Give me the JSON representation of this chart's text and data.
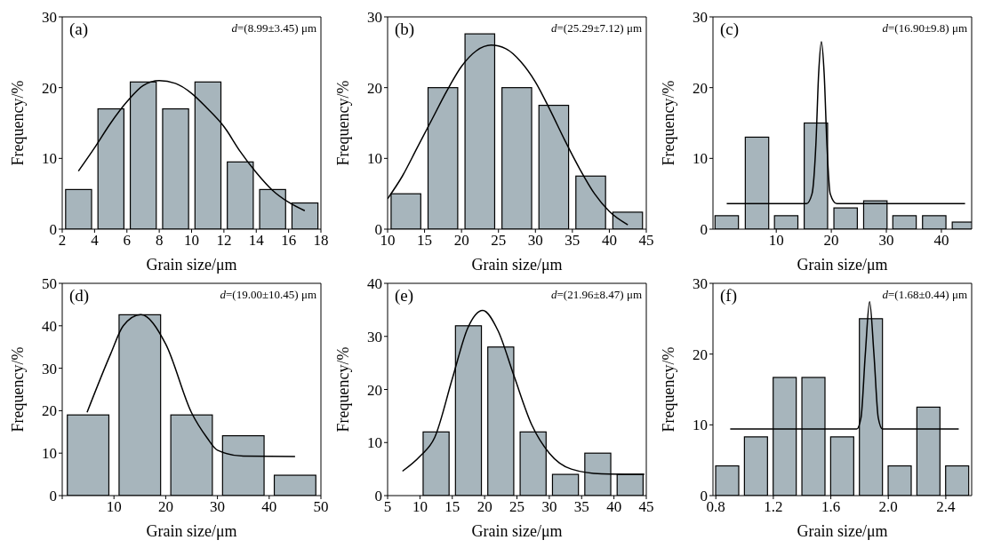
{
  "chart_data": [
    {
      "type": "bar",
      "title": "(a)",
      "annotations": [
        "d=(8.99±3.45) μm"
      ],
      "xlabel": "Grain size/μm",
      "ylabel": "Frequency/%",
      "xlim": [
        2,
        18
      ],
      "xticks": [
        2,
        4,
        6,
        8,
        10,
        12,
        14,
        16,
        18
      ],
      "ylim": [
        0,
        30
      ],
      "yticks": [
        0,
        10,
        20,
        30
      ],
      "marker": "none",
      "series": [
        {
          "color": "#a7b5bc",
          "x": [
            3,
            5,
            7,
            9,
            11,
            13,
            15,
            17
          ],
          "values": [
            5.6,
            17,
            20.8,
            17,
            20.8,
            9.5,
            5.6,
            3.7
          ]
        },
        {
          "type": "line",
          "color": "#000000",
          "x": [
            3,
            4,
            5,
            6,
            7,
            8,
            9,
            10,
            11,
            12,
            13,
            14,
            15,
            16,
            17
          ],
          "values": [
            8.2,
            11.5,
            15,
            18,
            20.3,
            21,
            20.6,
            19.2,
            17,
            14.5,
            11,
            8,
            5.5,
            3.8,
            2.6
          ]
        }
      ]
    },
    {
      "type": "bar",
      "title": "(b)",
      "annotations": [
        "d=(25.29±7.12) μm"
      ],
      "xlabel": "Grain size/μm",
      "ylabel": "Frequency/%",
      "xlim": [
        10,
        45
      ],
      "xticks": [
        10,
        15,
        20,
        25,
        30,
        35,
        40,
        45
      ],
      "ylim": [
        0,
        30
      ],
      "yticks": [
        0,
        10,
        20,
        30
      ],
      "marker": "none",
      "series": [
        {
          "color": "#a7b5bc",
          "x": [
            12.5,
            17.5,
            22.5,
            27.5,
            32.5,
            37.5,
            42.5
          ],
          "values": [
            5,
            20,
            27.6,
            20,
            17.5,
            7.5,
            2.4
          ]
        },
        {
          "type": "line",
          "color": "#000000",
          "x": [
            10,
            12,
            14,
            16,
            18,
            20,
            22,
            24,
            26,
            28,
            30,
            32,
            34,
            36,
            38,
            40,
            42.5
          ],
          "values": [
            4.3,
            7.5,
            11.5,
            15.5,
            19.5,
            23,
            25.2,
            26,
            25.5,
            23.7,
            20.8,
            16.8,
            12.5,
            8.5,
            5,
            2.5,
            0.6
          ]
        }
      ]
    },
    {
      "type": "bar",
      "title": "(c)",
      "annotations": [
        "d=(16.90±9.8) μm"
      ],
      "xlabel": "Grain size/μm",
      "ylabel": "Frequency/%",
      "xlim": [
        -1.5,
        45.5
      ],
      "xticks": [
        10,
        20,
        30,
        40
      ],
      "ylim": [
        0,
        30
      ],
      "yticks": [
        0,
        10,
        20,
        30
      ],
      "marker": "none",
      "series": [
        {
          "color": "#a7b5bc",
          "x": [
            1,
            6.5,
            11.8,
            17.2,
            22.6,
            28,
            33.3,
            38.7,
            44.1
          ],
          "values": [
            1.9,
            13,
            1.9,
            15,
            3,
            4,
            1.9,
            1.9,
            1
          ]
        },
        {
          "type": "line",
          "color": "#000000",
          "x": [
            1,
            15.5,
            16.5,
            17.2,
            17.7,
            18.2,
            18.7,
            19.2,
            19.8,
            21,
            44.3
          ],
          "values": [
            3.6,
            3.6,
            5,
            12,
            22,
            26.5,
            22,
            12,
            5,
            3.6,
            3.6
          ]
        }
      ]
    },
    {
      "type": "bar",
      "title": "(d)",
      "annotations": [
        "d=(19.00±10.45) μm"
      ],
      "xlabel": "Grain size/μm",
      "ylabel": "Frequency/%",
      "xlim": [
        0,
        50
      ],
      "xticks": [
        {
          "value": 0,
          "label": null
        },
        10,
        20,
        30,
        40,
        50
      ],
      "ylim": [
        0,
        50
      ],
      "yticks": [
        0,
        10,
        20,
        30,
        40,
        50
      ],
      "marker": "none",
      "series": [
        {
          "color": "#a7b5bc",
          "x": [
            5,
            15,
            25,
            35,
            45
          ],
          "values": [
            19,
            42.6,
            19,
            14.1,
            4.8
          ]
        },
        {
          "type": "line",
          "color": "#000000",
          "x": [
            4.8,
            9.4,
            11.8,
            15.2,
            20,
            25,
            28,
            30,
            35,
            45
          ],
          "values": [
            19.6,
            33.5,
            40,
            42.6,
            35.7,
            19.5,
            13.6,
            10.7,
            9.3,
            9.2
          ]
        }
      ]
    },
    {
      "type": "bar",
      "title": "(e)",
      "annotations": [
        "d=(21.96±8.47) μm"
      ],
      "xlabel": "Grain size/μm",
      "ylabel": "Frequency/%",
      "xlim": [
        5,
        45
      ],
      "xticks": [
        5,
        10,
        15,
        20,
        25,
        30,
        35,
        40,
        45
      ],
      "ylim": [
        0,
        40
      ],
      "yticks": [
        0,
        10,
        20,
        30,
        40
      ],
      "marker": "none",
      "series": [
        {
          "color": "#a7b5bc",
          "x": [
            12.5,
            17.5,
            22.5,
            27.5,
            32.5,
            37.5,
            42.5
          ],
          "values": [
            12,
            32,
            28,
            12,
            4,
            8,
            4
          ]
        },
        {
          "type": "line",
          "color": "#000000",
          "x": [
            7.3,
            10,
            12.3,
            15,
            17.4,
            19.7,
            22.1,
            24.5,
            27.3,
            30,
            33.4,
            38.1,
            44.7
          ],
          "values": [
            4.6,
            7.4,
            11,
            22,
            31.6,
            34.9,
            31,
            22.7,
            13.3,
            8,
            5,
            4.1,
            4
          ]
        }
      ]
    },
    {
      "type": "bar",
      "title": "(f)",
      "annotations": [
        "d=(1.68±0.44) μm"
      ],
      "xlabel": "Grain size/μm",
      "ylabel": "Frequency/%",
      "xlim": [
        0.78,
        2.58
      ],
      "xticks": [
        {
          "value": 0.8,
          "label": "0.8"
        },
        {
          "value": 1.2,
          "label": "1.2"
        },
        {
          "value": 1.6,
          "label": "1.6"
        },
        {
          "value": 2,
          "label": "2.0"
        },
        {
          "value": 2.4,
          "label": "2.4"
        }
      ],
      "ylim": [
        0,
        30
      ],
      "yticks": [
        0,
        10,
        20,
        30
      ],
      "marker": "none",
      "series": [
        {
          "color": "#a7b5bc",
          "x": [
            0.88,
            1.08,
            1.28,
            1.48,
            1.68,
            1.88,
            2.08,
            2.28,
            2.48
          ],
          "values": [
            4.2,
            8.3,
            16.7,
            16.7,
            8.3,
            25,
            4.2,
            12.5,
            4.2
          ]
        },
        {
          "type": "line",
          "color": "#000000",
          "x": [
            0.9,
            1.78,
            1.81,
            1.84,
            1.87,
            1.9,
            1.93,
            1.96,
            2.49
          ],
          "values": [
            9.4,
            9.4,
            11,
            20,
            27.4,
            20,
            11,
            9.4,
            9.4
          ]
        }
      ]
    }
  ]
}
